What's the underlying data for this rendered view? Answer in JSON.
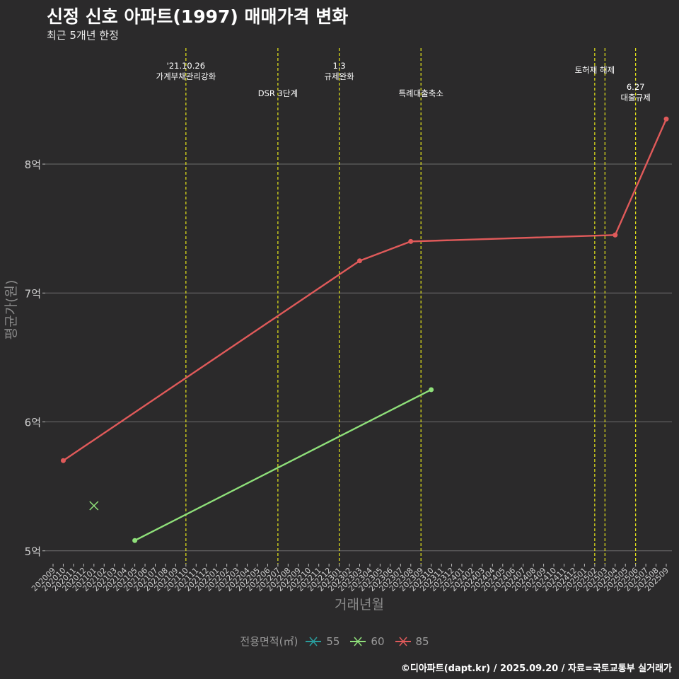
{
  "header": {
    "title": "신정 신호 아파트(1997) 매매가격 변화",
    "subtitle": "최근 5개년 한정"
  },
  "caption": "©디아파트(dapt.kr) / 2025.09.20 / 자료=국토교통부 실거래가",
  "legend": {
    "title": "전용면적(㎡)",
    "items": [
      {
        "label": "55",
        "color": "#2a9d9d"
      },
      {
        "label": "60",
        "color": "#8fe07a"
      },
      {
        "label": "85",
        "color": "#e05a5a"
      }
    ]
  },
  "chart_data": {
    "type": "line",
    "xlabel": "거래년월",
    "ylabel": "평균가(원)",
    "ylim": [
      4.9,
      8.9
    ],
    "y_ticks": [
      {
        "value": 5,
        "label": "5억"
      },
      {
        "value": 6,
        "label": "6억"
      },
      {
        "value": 7,
        "label": "7억"
      },
      {
        "value": 8,
        "label": "8억"
      }
    ],
    "categories": [
      "202009",
      "202010",
      "202011",
      "202012",
      "202101",
      "202102",
      "202103",
      "202104",
      "202105",
      "202106",
      "202107",
      "202108",
      "202109",
      "202110",
      "202111",
      "202112",
      "202201",
      "202202",
      "202203",
      "202204",
      "202205",
      "202206",
      "202207",
      "202208",
      "202209",
      "202210",
      "202211",
      "202212",
      "202301",
      "202302",
      "202303",
      "202304",
      "202305",
      "202306",
      "202307",
      "202308",
      "202309",
      "202310",
      "202311",
      "202312",
      "202401",
      "202402",
      "202403",
      "202404",
      "202405",
      "202406",
      "202407",
      "202408",
      "202409",
      "202410",
      "202411",
      "202412",
      "202501",
      "202502",
      "202503",
      "202504",
      "202505",
      "202506",
      "202507",
      "202508",
      "202509"
    ],
    "series": [
      {
        "name": "55",
        "color": "#2a9d9d",
        "points": []
      },
      {
        "name": "60",
        "color": "#8fe07a",
        "points": [
          {
            "x": "202101",
            "y": 5.35,
            "marker": "cross"
          },
          {
            "x": "202105",
            "y": 5.08,
            "marker": "dot"
          },
          {
            "x": "202310",
            "y": 6.25,
            "marker": "dot"
          }
        ]
      },
      {
        "name": "85",
        "color": "#e05a5a",
        "points": [
          {
            "x": "202010",
            "y": 5.7,
            "marker": "dot"
          },
          {
            "x": "202303",
            "y": 7.25,
            "marker": "dot"
          },
          {
            "x": "202308",
            "y": 7.4,
            "marker": "dot"
          },
          {
            "x": "202504",
            "y": 7.45,
            "marker": "dot"
          },
          {
            "x": "202509",
            "y": 8.35,
            "marker": "dot"
          }
        ]
      }
    ],
    "events": [
      {
        "x": "202110",
        "lines": [
          "'21.10.26",
          "가계부채관리강화"
        ],
        "level": 0
      },
      {
        "x": "202207",
        "lines": [
          "DSR 3단계"
        ],
        "level": 1
      },
      {
        "x": "202301",
        "lines": [
          "1.3",
          "규제완화"
        ],
        "level": 0
      },
      {
        "x": "202309",
        "lines": [
          "특례대출축소"
        ],
        "level": 1
      },
      {
        "x": "202502",
        "lines": [
          "토허제 해제"
        ],
        "level": 2
      },
      {
        "x": "202503",
        "lines": [],
        "level": 2
      },
      {
        "x": "202506",
        "lines": [
          "6.27",
          "대출규제"
        ],
        "level": 3
      }
    ],
    "grid": true,
    "legend_position": "bottom"
  }
}
